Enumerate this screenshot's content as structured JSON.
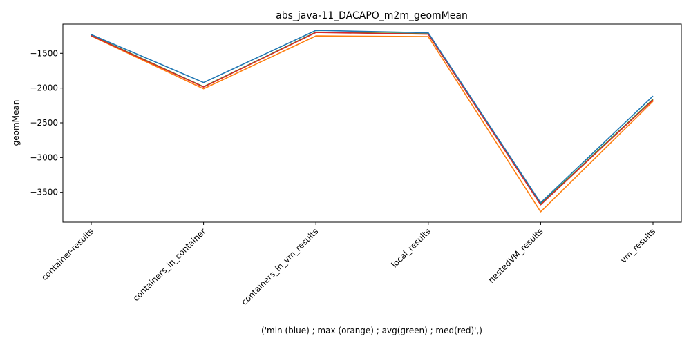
{
  "chart_data": {
    "type": "line",
    "title": "abs_java-11_DACAPO_m2m_geomMean",
    "xlabel": "('min (blue) ; max (orange) ; avg(green) ; med(red)',)",
    "ylabel": "geomMean",
    "categories": [
      "container-results",
      "containers_in_container",
      "containers_in_vm_results",
      "local_results",
      "nestedVM_results",
      "vm_results"
    ],
    "ylim": [
      -3930,
      -1080
    ],
    "yticks": [
      -1500,
      -2000,
      -2500,
      -3000,
      -3500
    ],
    "ytick_labels": [
      "−1500",
      "−2000",
      "−2500",
      "−3000",
      "−3500"
    ],
    "grid": false,
    "series": [
      {
        "color": "#ff7f0e",
        "values": [
          -1250,
          -2010,
          -1250,
          -1260,
          -3780,
          -2190
        ]
      },
      {
        "color": "#2ca02c",
        "values": [
          -1240,
          -1980,
          -1195,
          -1220,
          -3670,
          -2160
        ]
      },
      {
        "color": "#d62728",
        "values": [
          -1245,
          -1985,
          -1200,
          -1225,
          -3680,
          -2170
        ]
      },
      {
        "color": "#1f77b4",
        "values": [
          -1230,
          -1920,
          -1170,
          -1205,
          -3650,
          -2115
        ]
      }
    ]
  }
}
